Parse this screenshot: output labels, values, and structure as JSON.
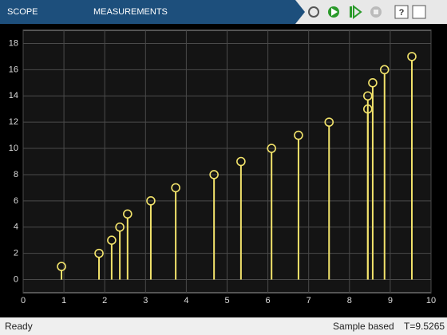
{
  "toolbar": {
    "tabs": [
      "SCOPE",
      "MEASUREMENTS"
    ]
  },
  "status": {
    "state": "Ready",
    "mode": "Sample based",
    "time": "T=9.5265"
  },
  "chart_data": {
    "type": "stem",
    "x": [
      0.94,
      1.86,
      2.17,
      2.37,
      2.56,
      3.13,
      3.74,
      4.68,
      5.34,
      6.09,
      6.75,
      7.5,
      8.45,
      8.45,
      8.57,
      8.86,
      9.53
    ],
    "values": [
      1,
      2,
      3,
      4,
      5,
      6,
      7,
      8,
      9,
      10,
      11,
      12,
      13,
      14,
      15,
      16,
      17
    ],
    "color": "#f2e36b",
    "xlim": [
      0,
      10
    ],
    "xticks": [
      0,
      1,
      2,
      3,
      4,
      5,
      6,
      7,
      8,
      9,
      10
    ],
    "ylim": [
      -1,
      19
    ],
    "yticks": [
      0,
      2,
      4,
      6,
      8,
      10,
      12,
      14,
      16,
      18
    ],
    "grid": true
  }
}
